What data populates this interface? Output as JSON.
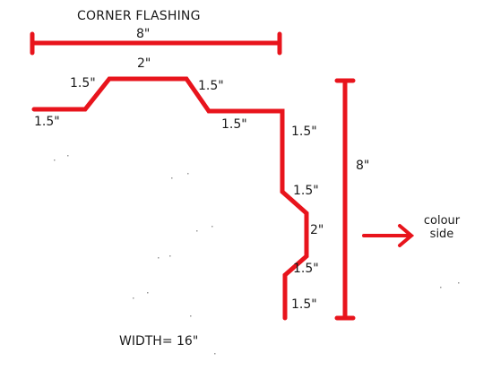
{
  "diagram": {
    "title": "CORNER FLASHING",
    "width_top": "8\"",
    "height_right": "8\"",
    "total_width": "WIDTH= 16\"",
    "note_line1": "colour",
    "note_line2": "side",
    "segments": {
      "left_flat": "1.5\"",
      "left_slope": "1.5\"",
      "top_flat": "2\"",
      "right_slope": "1.5\"",
      "mid_flat": "1.5\"",
      "down_1": "1.5\"",
      "down_2": "1.5\"",
      "bump": "2\"",
      "down_3": "1.5\"",
      "down_4": "1.5\""
    },
    "colors": {
      "line": "#e8141c",
      "text": "#1a1a1a",
      "background": "#ffffff"
    }
  }
}
